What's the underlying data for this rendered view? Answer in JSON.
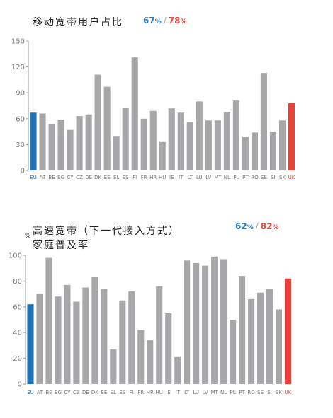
{
  "colors": {
    "eu": "#2174b5",
    "uk": "#e8413a",
    "other": "#a7a7aa",
    "axis": "#999999"
  },
  "charts": [
    {
      "title_lines": [
        "移动宽带用户占比"
      ],
      "unit": "",
      "legend": {
        "eu": "67",
        "uk": "78",
        "pct": "%",
        "sep": "/"
      }
    },
    {
      "title_lines": [
        "高速宽带（下一代接入方式）",
        "家庭普及率"
      ],
      "unit": "%",
      "legend": {
        "eu": "62",
        "uk": "82",
        "pct": "%",
        "sep": "/"
      }
    }
  ],
  "chart_data": [
    {
      "type": "bar",
      "title": "移动宽带用户占比",
      "categories": [
        "EU",
        "AT",
        "BE",
        "BG",
        "CY",
        "CZ",
        "DE",
        "DK",
        "EE",
        "EL",
        "ES",
        "FI",
        "FR",
        "HR",
        "HU",
        "IE",
        "IT",
        "LT",
        "LU",
        "LV",
        "MT",
        "NL",
        "PL",
        "PT",
        "RO",
        "SE",
        "SI",
        "SK",
        "UK"
      ],
      "values": [
        67,
        66,
        54,
        59,
        47,
        63,
        65,
        111,
        97,
        40,
        73,
        131,
        60,
        69,
        33,
        72,
        67,
        56,
        80,
        58,
        58,
        68,
        81,
        39,
        44,
        113,
        45,
        58,
        78
      ],
      "ylim": [
        0,
        150
      ],
      "yticks": [
        0,
        30,
        60,
        90,
        120,
        150
      ],
      "highlight": {
        "EU": "eu",
        "UK": "uk"
      }
    },
    {
      "type": "bar",
      "title": "高速宽带（下一代接入方式）家庭普及率",
      "categories": [
        "EU",
        "AT",
        "BE",
        "BG",
        "CY",
        "CZ",
        "DE",
        "DK",
        "EE",
        "EL",
        "ES",
        "FI",
        "FR",
        "HR",
        "HU",
        "IE",
        "IT",
        "LT",
        "LU",
        "LV",
        "MT",
        "NL",
        "PL",
        "PT",
        "RO",
        "SE",
        "SI",
        "SK",
        "UK"
      ],
      "values": [
        62,
        70,
        98,
        68,
        77,
        64,
        75,
        83,
        74,
        27,
        65,
        72,
        42,
        34,
        76,
        55,
        21,
        96,
        94,
        92,
        99,
        97,
        50,
        84,
        66,
        71,
        74,
        58,
        82
      ],
      "ylim": [
        0,
        100
      ],
      "yticks": [
        0,
        20,
        40,
        60,
        80,
        100
      ],
      "highlight": {
        "EU": "eu",
        "UK": "uk"
      }
    }
  ]
}
